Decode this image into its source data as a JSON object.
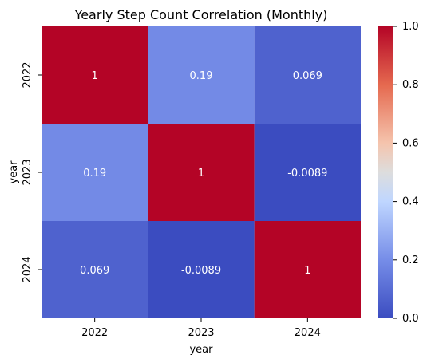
{
  "chart_data": {
    "type": "heatmap",
    "title": "Yearly Step Count Correlation (Monthly)",
    "xlabel": "year",
    "ylabel": "year",
    "x_categories": [
      "2022",
      "2023",
      "2024"
    ],
    "y_categories": [
      "2022",
      "2023",
      "2024"
    ],
    "values": [
      [
        1,
        0.19,
        0.069
      ],
      [
        0.19,
        1,
        -0.0089
      ],
      [
        0.069,
        -0.0089,
        1
      ]
    ],
    "value_labels": [
      [
        "1",
        "0.19",
        "0.069"
      ],
      [
        "0.19",
        "1",
        "-0.0089"
      ],
      [
        "0.069",
        "-0.0089",
        "1"
      ]
    ],
    "colorbar": {
      "min": 0,
      "max": 1,
      "colormap": "coolwarm",
      "ticks": [
        "0.0",
        "0.2",
        "0.4",
        "0.6",
        "0.8",
        "1.0"
      ]
    }
  }
}
